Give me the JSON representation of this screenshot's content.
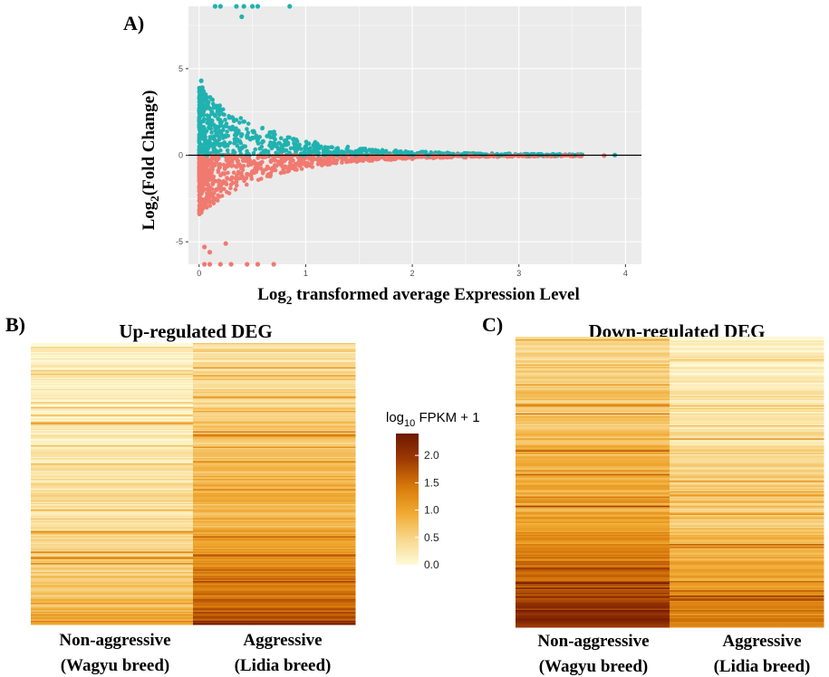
{
  "figure": {
    "panel_labels": {
      "a": "A)",
      "b": "B)",
      "c": "C)"
    }
  },
  "chart_data": [
    {
      "type": "scatter",
      "panel": "A",
      "xlabel": {
        "pre": "Log",
        "sub": "2",
        "post": " transformed average Expression Level"
      },
      "ylabel": {
        "pre": "Log",
        "sub": "2",
        "post": "(Fold Change)"
      },
      "xlim": [
        -0.1,
        4.15
      ],
      "ylim": [
        -6.3,
        8.6
      ],
      "x_ticks": [
        0,
        1,
        2,
        3,
        4
      ],
      "y_ticks": [
        -5,
        0,
        5
      ],
      "grid": true,
      "background": "#ebebeb",
      "hline": 0,
      "series": [
        {
          "color": "#20b2b0",
          "points": [
            [
              0.02,
              4.3
            ],
            [
              0.03,
              3.9
            ],
            [
              0.04,
              3.7
            ],
            [
              0.05,
              3.4
            ],
            [
              0.06,
              3.2
            ],
            [
              0.08,
              2.9
            ],
            [
              0.1,
              2.7
            ],
            [
              0.12,
              2.5
            ],
            [
              0.15,
              2.3
            ],
            [
              0.18,
              2.1
            ],
            [
              0.2,
              1.9
            ],
            [
              0.25,
              1.7
            ],
            [
              0.3,
              1.5
            ],
            [
              0.35,
              1.3
            ],
            [
              0.4,
              1.2
            ],
            [
              0.45,
              1.1
            ],
            [
              0.5,
              1.0
            ],
            [
              0.55,
              0.9
            ],
            [
              0.6,
              0.8
            ],
            [
              0.7,
              0.7
            ],
            [
              0.8,
              0.6
            ],
            [
              0.9,
              0.55
            ],
            [
              1.0,
              0.5
            ],
            [
              1.1,
              0.4
            ],
            [
              1.2,
              0.35
            ],
            [
              1.3,
              0.3
            ],
            [
              1.4,
              0.25
            ],
            [
              1.5,
              0.2
            ],
            [
              1.7,
              0.15
            ],
            [
              1.9,
              0.12
            ],
            [
              2.1,
              0.1
            ],
            [
              2.3,
              0.08
            ],
            [
              2.6,
              0.05
            ],
            [
              2.9,
              0.04
            ],
            [
              3.2,
              0.03
            ],
            [
              3.5,
              0.02
            ],
            [
              3.9,
              0.01
            ],
            [
              0.15,
              8.6
            ],
            [
              0.2,
              8.6
            ],
            [
              0.35,
              8.6
            ],
            [
              0.42,
              8.6
            ],
            [
              0.5,
              8.6
            ],
            [
              0.55,
              8.6
            ],
            [
              0.85,
              8.6
            ],
            [
              0.4,
              8.0
            ]
          ]
        },
        {
          "color": "#f07a70",
          "points": [
            [
              0.02,
              -3.3
            ],
            [
              0.04,
              -3.0
            ],
            [
              0.06,
              -2.8
            ],
            [
              0.08,
              -2.6
            ],
            [
              0.1,
              -2.4
            ],
            [
              0.13,
              -2.2
            ],
            [
              0.16,
              -2.0
            ],
            [
              0.2,
              -1.8
            ],
            [
              0.25,
              -1.6
            ],
            [
              0.3,
              -1.4
            ],
            [
              0.35,
              -1.3
            ],
            [
              0.4,
              -1.2
            ],
            [
              0.45,
              -1.1
            ],
            [
              0.5,
              -1.0
            ],
            [
              0.6,
              -0.9
            ],
            [
              0.7,
              -0.8
            ],
            [
              0.8,
              -0.7
            ],
            [
              0.9,
              -0.6
            ],
            [
              1.0,
              -0.55
            ],
            [
              1.2,
              -0.45
            ],
            [
              1.4,
              -0.35
            ],
            [
              1.6,
              -0.3
            ],
            [
              1.8,
              -0.25
            ],
            [
              2.0,
              -0.2
            ],
            [
              2.2,
              -0.15
            ],
            [
              2.5,
              -0.12
            ],
            [
              2.8,
              -0.08
            ],
            [
              3.1,
              -0.05
            ],
            [
              3.4,
              -0.04
            ],
            [
              3.8,
              -0.02
            ],
            [
              0.05,
              -5.3
            ],
            [
              0.1,
              -5.6
            ],
            [
              0.25,
              -5.1
            ],
            [
              0.05,
              -6.3
            ],
            [
              0.1,
              -6.3
            ],
            [
              0.2,
              -6.3
            ],
            [
              0.3,
              -6.3
            ],
            [
              0.45,
              -6.3
            ],
            [
              0.55,
              -6.3
            ],
            [
              0.7,
              -6.3
            ]
          ]
        }
      ]
    },
    {
      "type": "heatmap",
      "panel": "B",
      "title": "Up-regulated DEG",
      "columns": [
        {
          "line1": "Non-aggressive",
          "line2": "(Wagyu breed)"
        },
        {
          "line1": "Aggressive",
          "line2": "(Lidia breed)"
        }
      ],
      "rows": 220,
      "trend": [
        [
          0.05,
          0.12,
          0.35,
          0.75
        ],
        [
          0.28,
          0.55,
          0.85,
          1.6
        ]
      ]
    },
    {
      "type": "heatmap",
      "panel": "C",
      "title": "Down-regulated DEG",
      "columns": [
        {
          "line1": "Non-aggressive",
          "line2": "(Wagyu breed)"
        },
        {
          "line1": "Aggressive",
          "line2": "(Lidia breed)"
        }
      ],
      "rows": 220,
      "trend": [
        [
          0.35,
          0.7,
          1.0,
          2.1
        ],
        [
          0.05,
          0.3,
          0.6,
          1.3
        ]
      ]
    },
    {
      "type": "colorbar",
      "title": {
        "pre": "log",
        "sub": "10",
        "post": " FPKM + 1"
      },
      "range": [
        0,
        2.4
      ],
      "ticks": [
        "0.0",
        "0.5",
        "1.0",
        "1.5",
        "2.0"
      ],
      "colors": [
        "#fefad8",
        "#f8d68a",
        "#f0a830",
        "#d6780a",
        "#9e3a04",
        "#6e1702"
      ]
    }
  ]
}
